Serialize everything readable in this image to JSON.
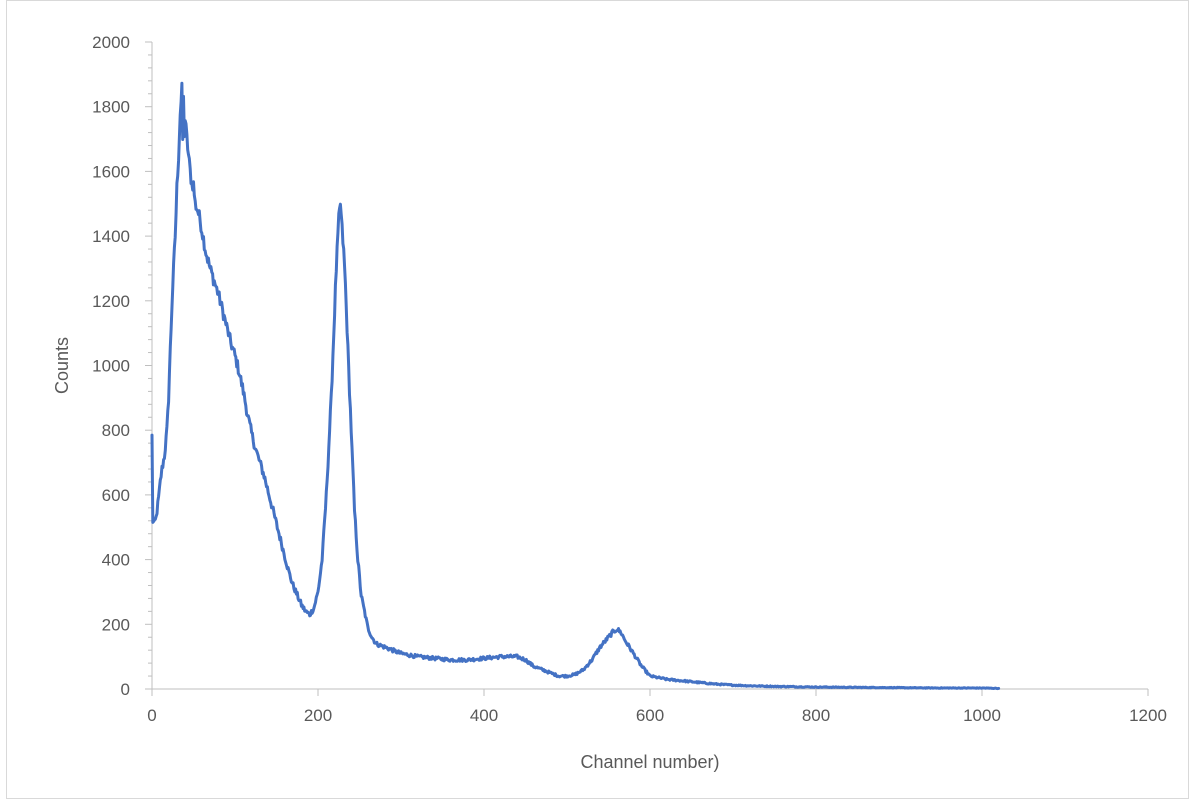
{
  "chart_data": {
    "type": "line",
    "title": "",
    "xlabel": "Channel number)",
    "ylabel": "Counts",
    "xlim": [
      0,
      1200
    ],
    "ylim": [
      0,
      2000
    ],
    "xticks": [
      0,
      200,
      400,
      600,
      800,
      1000,
      1200
    ],
    "yticks": [
      0,
      200,
      400,
      600,
      800,
      1000,
      1200,
      1400,
      1600,
      1800,
      2000
    ],
    "grid": false,
    "legend": "none",
    "line_color": "#4472c4",
    "series": [
      {
        "values_x": [
          0,
          1,
          3,
          5,
          8,
          10,
          12,
          15,
          18,
          20,
          22,
          25,
          28,
          30,
          32,
          34,
          36,
          37,
          38,
          39,
          40,
          42,
          44,
          46,
          48,
          50,
          52,
          55,
          58,
          60,
          65,
          70,
          75,
          80,
          85,
          90,
          95,
          100,
          105,
          110,
          115,
          120,
          125,
          130,
          135,
          140,
          145,
          150,
          155,
          160,
          165,
          170,
          175,
          180,
          185,
          190,
          195,
          200,
          205,
          210,
          213,
          216,
          219,
          222,
          225,
          227,
          229,
          231,
          233,
          236,
          240,
          244,
          248,
          252,
          256,
          260,
          265,
          270,
          280,
          290,
          300,
          320,
          340,
          360,
          380,
          400,
          420,
          440,
          450,
          460,
          470,
          480,
          490,
          500,
          510,
          520,
          530,
          540,
          550,
          555,
          560,
          565,
          570,
          580,
          590,
          600,
          620,
          640,
          660,
          680,
          700,
          720,
          750,
          780,
          800,
          850,
          900,
          950,
          1000,
          1020
        ],
        "values_y": [
          780,
          520,
          510,
          530,
          590,
          640,
          680,
          720,
          800,
          900,
          1050,
          1250,
          1400,
          1550,
          1650,
          1780,
          1850,
          1700,
          1820,
          1720,
          1760,
          1700,
          1650,
          1600,
          1560,
          1560,
          1500,
          1480,
          1450,
          1420,
          1350,
          1300,
          1260,
          1220,
          1170,
          1120,
          1070,
          1030,
          980,
          920,
          850,
          790,
          740,
          700,
          660,
          610,
          560,
          510,
          460,
          410,
          360,
          320,
          290,
          260,
          240,
          230,
          250,
          300,
          400,
          600,
          750,
          900,
          1100,
          1300,
          1450,
          1500,
          1420,
          1350,
          1250,
          1050,
          800,
          550,
          400,
          290,
          240,
          190,
          160,
          140,
          130,
          120,
          110,
          100,
          95,
          90,
          90,
          95,
          100,
          100,
          90,
          70,
          60,
          50,
          40,
          40,
          45,
          60,
          90,
          130,
          160,
          175,
          185,
          175,
          150,
          110,
          70,
          40,
          30,
          25,
          20,
          15,
          12,
          10,
          8,
          7,
          6,
          5,
          4,
          3,
          3,
          2
        ]
      }
    ]
  }
}
